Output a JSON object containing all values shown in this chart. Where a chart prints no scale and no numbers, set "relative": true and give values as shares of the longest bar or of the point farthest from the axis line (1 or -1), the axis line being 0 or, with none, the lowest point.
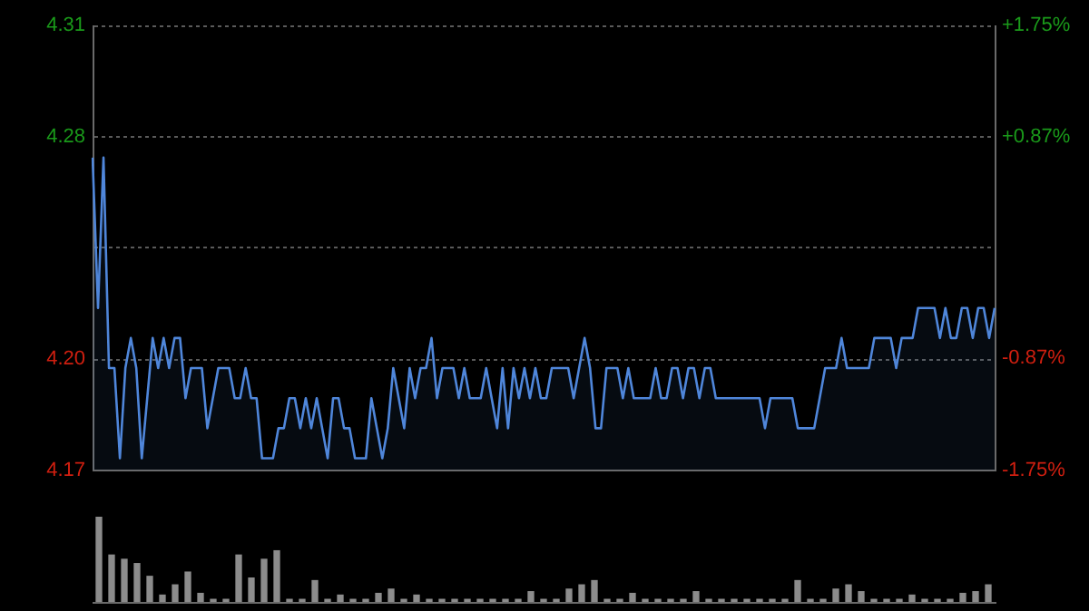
{
  "chart_data": [
    {
      "type": "area",
      "tick_labels": "y",
      "grid": "y",
      "categories": [
        null,
        null,
        null,
        null,
        null,
        null,
        null,
        null,
        null,
        null,
        null,
        null,
        null,
        null,
        null,
        null,
        null,
        null,
        null,
        null,
        null,
        null,
        null,
        null,
        null,
        null,
        null,
        null,
        null,
        null,
        null,
        null,
        null,
        null,
        null,
        null,
        null,
        null,
        null,
        null,
        null,
        null,
        null,
        null,
        null,
        null,
        null,
        null,
        null,
        null,
        null,
        null,
        null,
        null,
        null,
        null,
        null,
        null,
        null,
        null,
        null,
        null,
        null,
        null,
        null,
        null,
        null,
        null,
        null,
        null,
        null,
        null,
        null,
        null,
        null,
        null,
        null,
        null,
        null,
        null,
        null,
        null,
        null,
        null,
        null,
        null,
        null,
        null,
        null,
        null,
        null,
        null,
        null,
        null,
        null,
        null,
        null,
        null,
        null,
        null,
        null,
        null,
        null,
        null,
        null,
        null,
        null,
        null,
        null,
        null,
        null,
        null,
        null,
        null,
        null,
        null,
        null,
        null,
        null,
        null,
        null,
        null,
        null,
        null,
        null,
        null,
        null,
        null,
        null,
        null,
        null,
        null,
        null,
        null,
        null,
        null,
        null,
        null,
        null,
        null,
        null,
        null,
        null,
        null,
        null,
        null,
        null,
        null,
        null,
        null,
        null,
        null,
        null,
        null,
        null,
        null,
        null,
        null,
        null,
        null,
        null,
        null,
        null,
        null,
        null,
        null
      ],
      "series": [
        {
          "color": "#4f86da",
          "values": [
            4.27,
            4.22,
            4.27,
            4.2,
            4.2,
            4.17,
            4.2,
            4.21,
            4.2,
            4.17,
            4.19,
            4.21,
            4.2,
            4.21,
            4.2,
            4.21,
            4.21,
            4.19,
            4.2,
            4.2,
            4.2,
            4.18,
            4.19,
            4.2,
            4.2,
            4.2,
            4.19,
            4.19,
            4.2,
            4.19,
            4.19,
            4.17,
            4.17,
            4.17,
            4.18,
            4.18,
            4.19,
            4.19,
            4.18,
            4.19,
            4.18,
            4.19,
            4.18,
            4.17,
            4.19,
            4.19,
            4.18,
            4.18,
            4.17,
            4.17,
            4.17,
            4.19,
            4.18,
            4.17,
            4.18,
            4.2,
            4.19,
            4.18,
            4.2,
            4.19,
            4.2,
            4.2,
            4.21,
            4.19,
            4.2,
            4.2,
            4.2,
            4.19,
            4.2,
            4.19,
            4.19,
            4.19,
            4.2,
            4.19,
            4.18,
            4.2,
            4.18,
            4.2,
            4.19,
            4.2,
            4.19,
            4.2,
            4.19,
            4.19,
            4.2,
            4.2,
            4.2,
            4.2,
            4.19,
            4.2,
            4.21,
            4.2,
            4.18,
            4.18,
            4.2,
            4.2,
            4.2,
            4.19,
            4.2,
            4.19,
            4.19,
            4.19,
            4.19,
            4.2,
            4.19,
            4.19,
            4.2,
            4.2,
            4.19,
            4.2,
            4.2,
            4.19,
            4.2,
            4.2,
            4.19,
            4.19,
            4.19,
            4.19,
            4.19,
            4.19,
            4.19,
            4.19,
            4.19,
            4.18,
            4.19,
            4.19,
            4.19,
            4.19,
            4.19,
            4.18,
            4.18,
            4.18,
            4.18,
            4.19,
            4.2,
            4.2,
            4.2,
            4.21,
            4.2,
            4.2,
            4.2,
            4.2,
            4.2,
            4.21,
            4.21,
            4.21,
            4.21,
            4.2,
            4.21,
            4.21,
            4.21,
            4.22,
            4.22,
            4.22,
            4.22,
            4.21,
            4.22,
            4.21,
            4.21,
            4.22,
            4.22,
            4.21,
            4.22,
            4.22,
            4.21,
            4.22
          ]
        }
      ],
      "ylim": [
        4.166,
        4.314
      ],
      "yticks": [
        {
          "value": 4.166,
          "label": "4.17"
        },
        {
          "value": 4.203,
          "label": "4.20"
        },
        {
          "value": 4.24,
          "label": null
        },
        {
          "value": 4.277,
          "label": "4.28"
        },
        {
          "value": 4.314,
          "label": "4.31"
        }
      ],
      "y2lim": [
        -1.75,
        1.75
      ],
      "y2ticks": [
        {
          "value": -1.75,
          "label": "-1.75%"
        },
        {
          "value": -0.87,
          "label": "-0.87%"
        },
        {
          "value": 0,
          "label": null
        },
        {
          "value": 0.87,
          "label": "+0.87%"
        },
        {
          "value": 1.75,
          "label": "+1.75%"
        }
      ]
    },
    {
      "type": "bar",
      "relative": true,
      "color": "#8c8c8c",
      "categories": [
        null,
        null,
        null,
        null,
        null,
        null,
        null,
        null,
        null,
        null,
        null,
        null,
        null,
        null,
        null,
        null,
        null,
        null,
        null,
        null,
        null,
        null,
        null,
        null,
        null,
        null,
        null,
        null,
        null,
        null,
        null,
        null,
        null,
        null,
        null,
        null,
        null,
        null,
        null,
        null,
        null,
        null,
        null,
        null,
        null,
        null,
        null,
        null,
        null,
        null,
        null,
        null,
        null,
        null,
        null,
        null,
        null,
        null,
        null,
        null,
        null,
        null,
        null,
        null,
        null,
        null,
        null,
        null,
        null,
        null,
        null
      ],
      "values": [
        1,
        0.55,
        0.5,
        0.45,
        0.3,
        0.08,
        0.2,
        0.35,
        0.1,
        0.03,
        0.03,
        0.55,
        0.28,
        0.5,
        0.6,
        0.03,
        0.03,
        0.25,
        0.03,
        0.08,
        0.03,
        0.03,
        0.1,
        0.15,
        0.03,
        0.08,
        0.03,
        0.03,
        0.03,
        0.03,
        0.03,
        0.03,
        0.03,
        0.03,
        0.12,
        0.03,
        0.03,
        0.15,
        0.2,
        0.25,
        0.03,
        0.03,
        0.1,
        0.03,
        0.03,
        0.03,
        0.03,
        0.12,
        0.03,
        0.03,
        0.03,
        0.03,
        0.03,
        0.03,
        0.03,
        0.25,
        0.03,
        0.03,
        0.15,
        0.2,
        0.12,
        0.03,
        0.03,
        0.03,
        0.08,
        0.03,
        0.03,
        0.03,
        0.1,
        0.12,
        0.2
      ]
    }
  ]
}
